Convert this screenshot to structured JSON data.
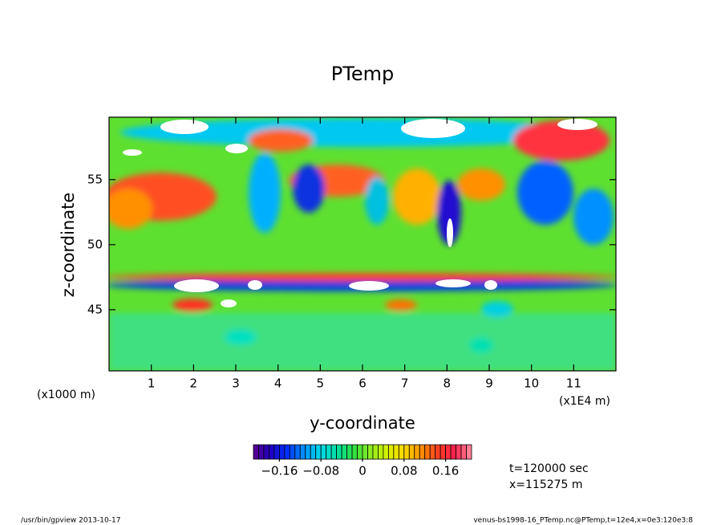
{
  "chart_data": {
    "type": "heatmap",
    "title": "PTemp",
    "xlabel": "y-coordinate",
    "ylabel": "z-coordinate",
    "x_unit_left": "(x1000 m)",
    "x_unit_right": "(x1E4 m)",
    "xlim": [
      0,
      12
    ],
    "xticks": [
      1,
      2,
      3,
      4,
      5,
      6,
      7,
      8,
      9,
      10,
      11
    ],
    "ylim": [
      40.3,
      59.8
    ],
    "yticks": [
      45,
      50,
      55
    ],
    "colorbar": {
      "lim": [
        -0.21,
        0.21
      ],
      "step": 0.01,
      "ticks": [
        {
          "value": -0.16,
          "label": "−0.16"
        },
        {
          "value": -0.08,
          "label": "−0.08"
        },
        0,
        0.08,
        0.16
      ],
      "colors": [
        "#5a0090",
        "#2000c0",
        "#0030ff",
        "#0090ff",
        "#00d8e8",
        "#00e0a0",
        "#30e040",
        "#90ec20",
        "#d8f000",
        "#ffd800",
        "#ff9000",
        "#ff4020",
        "#ff2050",
        "#ff90a0"
      ]
    },
    "annotations": [
      "t=120000 sec",
      "x=115275 m"
    ],
    "footer_left": "/usr/bin/gpview  2013-10-17",
    "footer_right": "venus-bs1998-16_PTemp.nc@PTemp,t=12e4,x=0e3:120e3:8"
  }
}
